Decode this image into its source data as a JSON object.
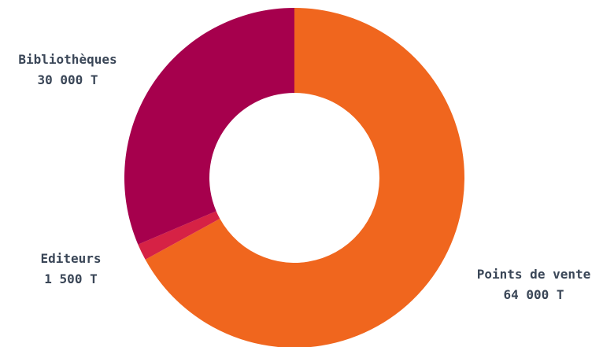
{
  "chart_data": {
    "type": "pie",
    "variant": "donut",
    "title": "",
    "unit": "T",
    "start": "top",
    "direction": "clockwise",
    "slices": [
      {
        "label": "Points de vente",
        "value": 64000,
        "display_value": "64 000 T",
        "color": "#f0661e"
      },
      {
        "label": "Editeurs",
        "value": 1500,
        "display_value": "1 500 T",
        "color": "#d62245"
      },
      {
        "label": "Bibliothèques",
        "value": 30000,
        "display_value": "30 000 T",
        "color": "#a6004d"
      }
    ]
  }
}
